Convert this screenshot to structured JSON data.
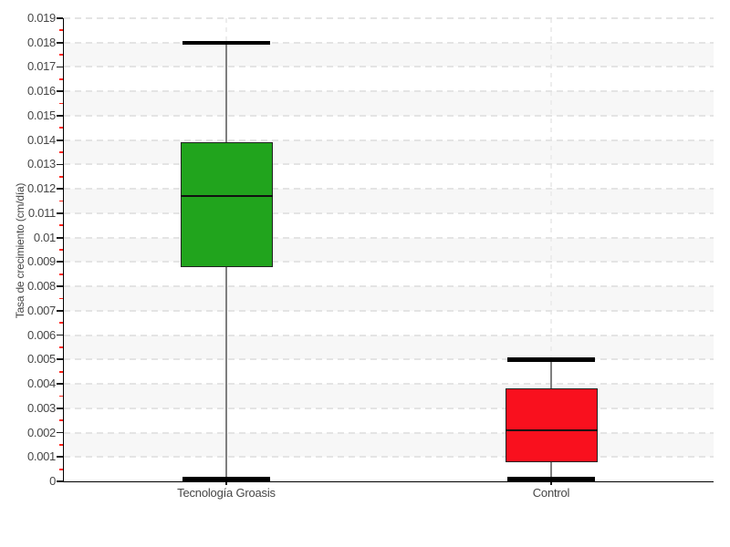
{
  "chart_data": {
    "type": "boxplot",
    "title": "",
    "xlabel": "",
    "ylabel": "Tasa de crecimiento (cm/día)",
    "ylim": [
      0,
      0.019
    ],
    "ytick_step": 0.001,
    "ytick_labels": [
      "0",
      "0.001",
      "0.002",
      "0.003",
      "0.004",
      "0.005",
      "0.006",
      "0.007",
      "0.008",
      "0.009",
      "0.01",
      "0.011",
      "0.012",
      "0.013",
      "0.014",
      "0.015",
      "0.016",
      "0.017",
      "0.018",
      "0.019"
    ],
    "grid": {
      "horizontal": "dashed",
      "vertical_at_categories": "dashed",
      "alternating_bands": true,
      "minor_ticks": "red, every 0.0005"
    },
    "legend": "none",
    "categories": [
      "Tecnología Groasis",
      "Control"
    ],
    "series": [
      {
        "name": "Tecnología Groasis",
        "min": 0.0001,
        "q1": 0.0088,
        "median": 0.0117,
        "q3": 0.0139,
        "max": 0.018,
        "fill_color": "#21a41d"
      },
      {
        "name": "Control",
        "min": 0.0001,
        "q1": 0.0008,
        "median": 0.0021,
        "q3": 0.0038,
        "max": 0.005,
        "fill_color": "#f9101e"
      }
    ],
    "style": {
      "background_color": "#ffffff",
      "band_color": "#f7f7f7",
      "hgrid_color": "#e4e4e4",
      "vgrid_color": "#ededed",
      "axis_color": "#000000",
      "major_tick_color": "#1a1a1a",
      "minor_tick_color": "#ff2419",
      "box_border_color": "#222222",
      "median_color": "#111111",
      "whisker_stem_color": "#7f7f7f",
      "whisker_cap_color": "#000000",
      "label_color": "#464646"
    }
  }
}
